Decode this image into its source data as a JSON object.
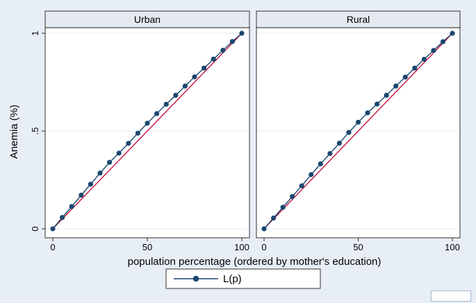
{
  "chart_data": {
    "type": "line",
    "xlabel": "population percentage (ordered by mother's education)",
    "ylabel": "Anemia (%)",
    "xlim": [
      0,
      100
    ],
    "ylim": [
      0,
      1
    ],
    "x_ticks": [
      "0",
      "50",
      "100"
    ],
    "y_ticks": [
      "0",
      ".5",
      "1"
    ],
    "x_tick_values": [
      0,
      50,
      100
    ],
    "y_tick_values": [
      0,
      0.5,
      1
    ],
    "grid": "horizontal",
    "legend_position": "bottom",
    "legend": [
      "L(p)"
    ],
    "colors": {
      "series": "#1a476f",
      "equality_line": "#c10534"
    },
    "panels": [
      {
        "title": "Urban",
        "series": [
          {
            "name": "L(p)",
            "x": [
              0,
              5,
              10,
              15,
              20,
              25,
              30,
              35,
              40,
              45,
              50,
              55,
              60,
              65,
              70,
              75,
              80,
              85,
              90,
              95,
              100
            ],
            "y": [
              0,
              0.058,
              0.114,
              0.172,
              0.228,
              0.285,
              0.34,
              0.387,
              0.437,
              0.489,
              0.54,
              0.589,
              0.637,
              0.683,
              0.73,
              0.777,
              0.822,
              0.868,
              0.913,
              0.958,
              1.0
            ]
          }
        ],
        "equality_line": {
          "x": [
            0,
            100
          ],
          "y": [
            0,
            1
          ]
        }
      },
      {
        "title": "Rural",
        "series": [
          {
            "name": "L(p)",
            "x": [
              0,
              5,
              10,
              15,
              20,
              25,
              30,
              35,
              40,
              45,
              50,
              55,
              60,
              65,
              70,
              75,
              80,
              85,
              90,
              95,
              100
            ],
            "y": [
              0,
              0.055,
              0.11,
              0.165,
              0.22,
              0.277,
              0.332,
              0.385,
              0.438,
              0.493,
              0.545,
              0.593,
              0.638,
              0.683,
              0.73,
              0.776,
              0.822,
              0.867,
              0.912,
              0.957,
              1.0
            ]
          }
        ],
        "equality_line": {
          "x": [
            0,
            100
          ],
          "y": [
            0,
            1
          ]
        }
      }
    ]
  }
}
